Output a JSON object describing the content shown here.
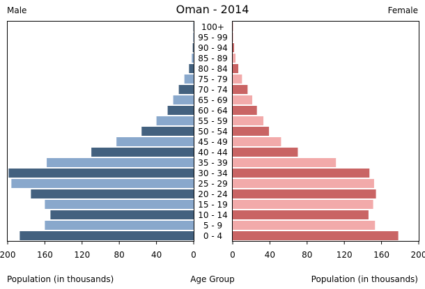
{
  "chart_data": {
    "type": "bar",
    "title": "Oman - 2014",
    "left_label": "Male",
    "right_label": "Female",
    "xlabel_left": "Population (in thousands)",
    "xlabel_center": "Age Group",
    "xlabel_right": "Population (in thousands)",
    "categories": [
      "0 - 4",
      "5 - 9",
      "10 - 14",
      "15 - 19",
      "20 - 24",
      "25 - 29",
      "30 - 34",
      "35 - 39",
      "40 - 44",
      "45 - 49",
      "50 - 54",
      "55 - 59",
      "60 - 64",
      "65 - 69",
      "70 - 74",
      "75 - 79",
      "80 - 84",
      "85 - 89",
      "90 - 94",
      "95 - 99",
      "100+"
    ],
    "male_ticks": [
      "200",
      "160",
      "120",
      "80",
      "40",
      "0"
    ],
    "female_ticks": [
      "0",
      "40",
      "80",
      "120",
      "160",
      "200"
    ],
    "xlim": [
      0,
      200
    ],
    "series": [
      {
        "side": "male",
        "values": [
          187,
          160,
          154,
          160,
          175,
          196,
          199,
          158,
          110,
          83,
          56,
          40,
          28,
          22,
          16,
          10,
          5,
          2,
          1,
          0.5,
          0.3
        ],
        "colors": [
          "#43617f",
          "#89a8cc"
        ]
      },
      {
        "side": "female",
        "values": [
          178,
          153,
          146,
          151,
          154,
          152,
          147,
          111,
          70,
          52,
          39,
          33,
          26,
          21,
          16,
          10,
          6,
          3,
          1.5,
          0.5,
          0.3
        ],
        "colors": [
          "#c96464",
          "#f2aaaa"
        ]
      }
    ]
  }
}
